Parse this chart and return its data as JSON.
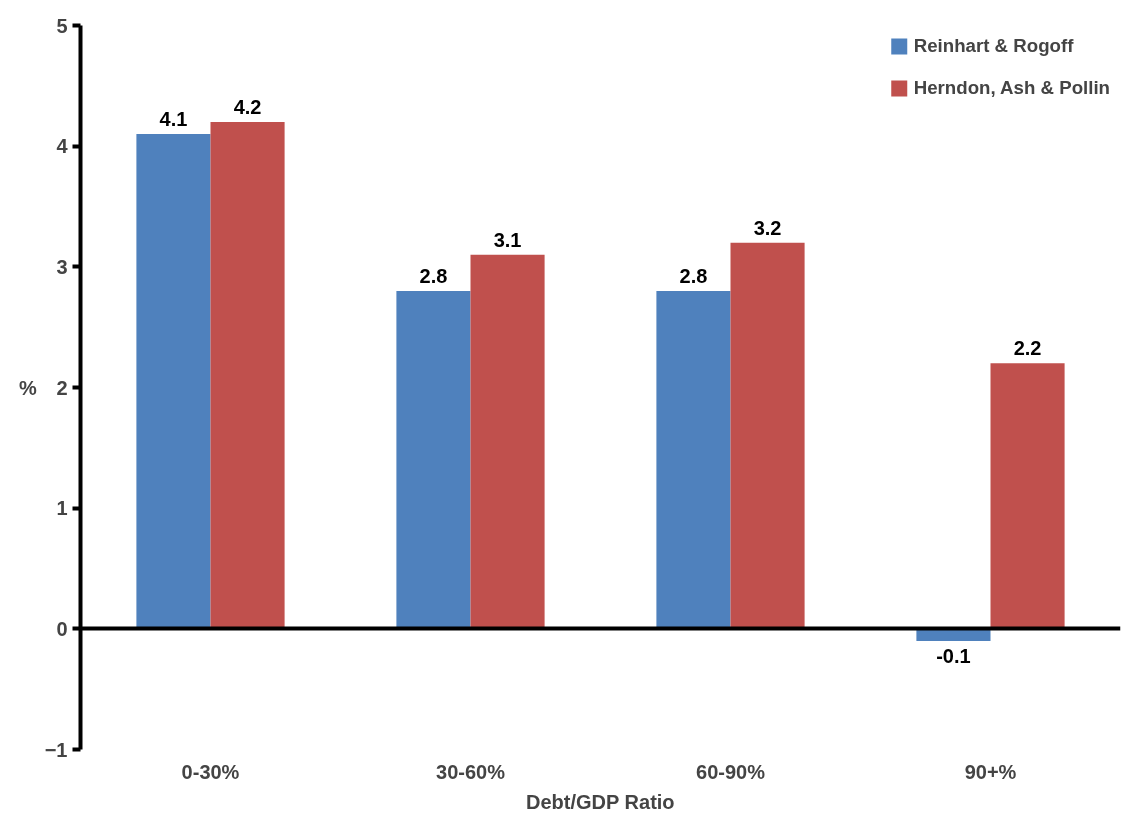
{
  "chart_data": {
    "type": "bar",
    "xlabel": "Debt/GDP Ratio",
    "ylabel": "%",
    "categories": [
      "0-30%",
      "30-60%",
      "60-90%",
      "90+%"
    ],
    "series": [
      {
        "name": "Reinhart & Rogoff",
        "color": "#4f81bd",
        "values": [
          4.1,
          2.8,
          2.8,
          -0.1
        ]
      },
      {
        "name": "Herndon, Ash & Pollin",
        "color": "#c0504d",
        "values": [
          4.2,
          3.1,
          3.2,
          2.2
        ]
      }
    ],
    "ylim": [
      -1,
      5
    ],
    "yticks": [
      -1,
      0,
      1,
      2,
      3,
      4,
      5
    ],
    "legend": "top right",
    "data_labels": true
  }
}
